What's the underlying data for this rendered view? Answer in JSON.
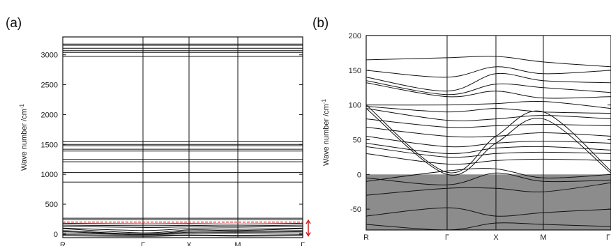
{
  "chart_data": [
    {
      "type": "line",
      "panel_label": "(a)",
      "ylabel": "Wave number /cm",
      "ylabel_superscript": "-1",
      "x_ticks": [
        "R",
        "Γ",
        "X",
        "M",
        "Γ"
      ],
      "y_ticks": [
        0,
        500,
        1000,
        1500,
        2000,
        2500,
        3000
      ],
      "ylim": [
        -60,
        3300
      ],
      "grid": false,
      "highlight": {
        "color": "#cc2222",
        "y_value": 200,
        "bracket_range": [
          -30,
          230
        ]
      },
      "series": [
        {
          "values": [
            3180,
            3180,
            3180,
            3180,
            3180
          ]
        },
        {
          "values": [
            3160,
            3160,
            3160,
            3160,
            3160
          ]
        },
        {
          "values": [
            3110,
            3110,
            3110,
            3110,
            3110
          ]
        },
        {
          "values": [
            3070,
            3070,
            3070,
            3070,
            3070
          ]
        },
        {
          "values": [
            3040,
            3040,
            3040,
            3040,
            3040
          ]
        },
        {
          "values": [
            2975,
            2975,
            2975,
            2975,
            2975
          ]
        },
        {
          "values": [
            1545,
            1545,
            1545,
            1545,
            1545
          ]
        },
        {
          "values": [
            1500,
            1500,
            1500,
            1500,
            1500
          ]
        },
        {
          "values": [
            1480,
            1480,
            1480,
            1480,
            1480
          ]
        },
        {
          "values": [
            1420,
            1420,
            1420,
            1420,
            1420
          ]
        },
        {
          "values": [
            1390,
            1390,
            1390,
            1390,
            1390
          ]
        },
        {
          "values": [
            1250,
            1250,
            1250,
            1250,
            1250
          ]
        },
        {
          "values": [
            1210,
            1210,
            1210,
            1210,
            1210
          ]
        },
        {
          "values": [
            1030,
            1030,
            1030,
            1030,
            1030
          ]
        },
        {
          "values": [
            870,
            870,
            870,
            870,
            870
          ]
        },
        {
          "values": [
            265,
            265,
            265,
            265,
            265
          ]
        },
        {
          "values": [
            240,
            240,
            240,
            240,
            240
          ]
        },
        {
          "values": [
            180,
            170,
            175,
            168,
            180
          ]
        },
        {
          "values": [
            150,
            140,
            145,
            138,
            150
          ]
        },
        {
          "values": [
            130,
            110,
            120,
            115,
            130
          ]
        },
        {
          "values": [
            100,
            60,
            90,
            80,
            100
          ]
        },
        {
          "values": [
            90,
            20,
            70,
            60,
            90
          ]
        },
        {
          "values": [
            60,
            0,
            50,
            45,
            60
          ]
        },
        {
          "values": [
            40,
            0,
            30,
            30,
            40
          ]
        },
        {
          "values": [
            20,
            -10,
            10,
            15,
            20
          ]
        },
        {
          "values": [
            -10,
            -20,
            -15,
            -20,
            -10
          ]
        },
        {
          "values": [
            -30,
            -40,
            -25,
            -35,
            -30
          ]
        }
      ]
    },
    {
      "type": "line",
      "panel_label": "(b)",
      "ylabel": "Wave number /cm",
      "ylabel_superscript": "-1",
      "x_ticks": [
        "R",
        "Γ",
        "X",
        "M",
        "Γ"
      ],
      "y_ticks": [
        -50,
        0,
        50,
        100,
        150,
        200
      ],
      "ylim": [
        -80,
        200
      ],
      "grid": false,
      "shaded_region": {
        "y_from": -80,
        "y_to": 0,
        "color": "#8c8c8c"
      },
      "series": [
        {
          "values": [
            165,
            168,
            170,
            162,
            155
          ]
        },
        {
          "values": [
            150,
            140,
            155,
            145,
            150
          ]
        },
        {
          "values": [
            140,
            120,
            145,
            135,
            132
          ]
        },
        {
          "values": [
            135,
            115,
            130,
            125,
            118
          ]
        },
        {
          "values": [
            132,
            112,
            120,
            110,
            112
          ]
        },
        {
          "values": [
            100,
            100,
            102,
            105,
            95
          ]
        },
        {
          "values": [
            98,
            90,
            95,
            90,
            88
          ]
        },
        {
          "values": [
            95,
            78,
            80,
            85,
            80
          ]
        },
        {
          "values": [
            80,
            68,
            70,
            72,
            70
          ]
        },
        {
          "values": [
            68,
            55,
            55,
            60,
            55
          ]
        },
        {
          "values": [
            55,
            40,
            45,
            48,
            45
          ]
        },
        {
          "values": [
            45,
            30,
            38,
            40,
            35
          ]
        },
        {
          "values": [
            40,
            25,
            30,
            32,
            30
          ]
        },
        {
          "values": [
            30,
            15,
            20,
            22,
            20
          ]
        },
        {
          "values": [
            100,
            3,
            55,
            90,
            5
          ]
        },
        {
          "values": [
            95,
            0,
            45,
            80,
            2
          ]
        },
        {
          "values": [
            -10,
            5,
            8,
            -5,
            0
          ]
        },
        {
          "values": [
            -5,
            -15,
            2,
            -10,
            -8
          ]
        },
        {
          "values": [
            -30,
            -20,
            -20,
            -25,
            -12
          ]
        },
        {
          "values": [
            -60,
            -48,
            -60,
            -55,
            -50
          ]
        },
        {
          "values": [
            -72,
            -80,
            -70,
            -72,
            -75
          ]
        }
      ]
    }
  ]
}
